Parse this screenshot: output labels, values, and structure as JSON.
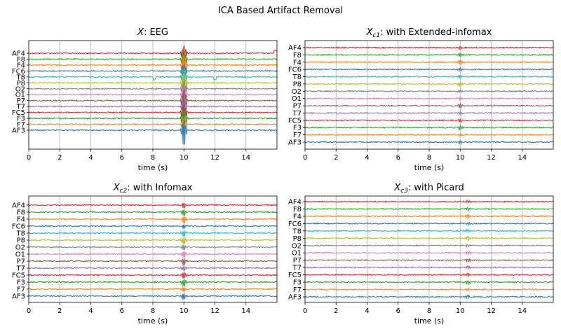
{
  "suptitle": "ICA Based Artifact Removal",
  "colors": {
    "AF4": "#d62728",
    "F8": "#2ca02c",
    "F4": "#ff7f0e",
    "FC6": "#1f77b4",
    "T8": "#17becf",
    "P8": "#bcbd22",
    "O2": "#7f7f7f",
    "O1": "#e377c2",
    "P7": "#8c564b",
    "T7": "#9467bd",
    "FC5": "#d62728",
    "F3": "#2ca02c",
    "F7": "#ff7f0e",
    "AF3": "#1f77b4"
  },
  "chart_data": [
    {
      "type": "line",
      "title_var": "X",
      "title_sub": "",
      "title_rest": ": EEG",
      "xlabel": "time (s)",
      "xlim": [
        0,
        16
      ],
      "xticks": [
        0,
        2,
        4,
        6,
        8,
        10,
        12,
        14
      ],
      "channels": [
        "AF4",
        "F8",
        "F4",
        "FC6",
        "T8",
        "P8",
        "O2",
        "O1",
        "P7",
        "T7",
        "FC5",
        "F3",
        "F7",
        "AF3"
      ],
      "grid": "vertical",
      "artifact_time_s": 10,
      "artifact_strength": "large"
    },
    {
      "type": "line",
      "title_var": "X",
      "title_sub": "c1",
      "title_rest": ": with Extended-infomax",
      "xlabel": "time (s)",
      "xlim": [
        0,
        16
      ],
      "xticks": [
        0,
        2,
        4,
        6,
        8,
        10,
        12,
        14
      ],
      "channels": [
        "AF4",
        "F8",
        "F4",
        "FC6",
        "T8",
        "P8",
        "O2",
        "O1",
        "P7",
        "T7",
        "FC5",
        "F3",
        "F7",
        "AF3"
      ],
      "grid": "vertical",
      "artifact_time_s": 10,
      "artifact_strength": "small"
    },
    {
      "type": "line",
      "title_var": "X",
      "title_sub": "c2",
      "title_rest": ": with Infomax",
      "xlabel": "time (s)",
      "xlim": [
        0,
        16
      ],
      "xticks": [
        0,
        2,
        4,
        6,
        8,
        10,
        12,
        14
      ],
      "channels": [
        "AF4",
        "F8",
        "F4",
        "FC6",
        "T8",
        "P8",
        "O2",
        "O1",
        "P7",
        "T7",
        "FC5",
        "F3",
        "F7",
        "AF3"
      ],
      "grid": "vertical",
      "artifact_time_s": 10,
      "artifact_strength": "medium"
    },
    {
      "type": "line",
      "title_var": "X",
      "title_sub": "c3",
      "title_rest": ": with Picard",
      "xlabel": "time (s)",
      "xlim": [
        0,
        16
      ],
      "xticks": [
        0,
        2,
        4,
        6,
        8,
        10,
        12,
        14
      ],
      "channels": [
        "AF4",
        "F8",
        "F4",
        "FC6",
        "T8",
        "P8",
        "O2",
        "O1",
        "P7",
        "T7",
        "FC5",
        "F3",
        "F7",
        "AF3"
      ],
      "grid": "vertical",
      "artifact_time_s": 10.5,
      "artifact_strength": "small"
    }
  ]
}
